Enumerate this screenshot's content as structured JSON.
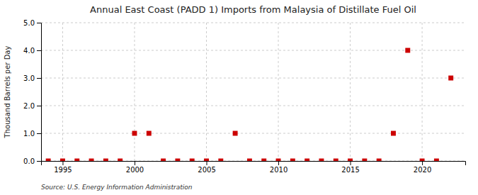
{
  "chart_data": {
    "type": "scatter",
    "title": "Annual East Coast (PADD 1) Imports from Malaysia of Distillate Fuel Oil",
    "ylabel": "Thousand Barrels per Day",
    "source": "Source: U.S. Energy Information Administration",
    "x": [
      1994,
      1995,
      1996,
      1997,
      1998,
      1999,
      2000,
      2001,
      2002,
      2003,
      2004,
      2005,
      2006,
      2007,
      2008,
      2009,
      2010,
      2011,
      2012,
      2013,
      2014,
      2015,
      2016,
      2017,
      2018,
      2019,
      2020,
      2021,
      2022
    ],
    "values": [
      0,
      0,
      0,
      0,
      0,
      0,
      1.0,
      1.0,
      0,
      0,
      0,
      0,
      0,
      1.0,
      0,
      0,
      0,
      0,
      0,
      0,
      0,
      0,
      0,
      0,
      1.0,
      4.0,
      0,
      0,
      3.0
    ],
    "color": "#cc0000",
    "marker": "square",
    "xlim": [
      1993.5,
      2023.0
    ],
    "ylim": [
      0,
      5.0
    ],
    "xticks": [
      1995,
      2000,
      2005,
      2010,
      2015,
      2020
    ],
    "yticks": [
      {
        "value": 0.0,
        "label": "0.0"
      },
      {
        "value": 1.0,
        "label": "1.0"
      },
      {
        "value": 2.0,
        "label": "2.0"
      },
      {
        "value": 3.0,
        "label": "3.0"
      },
      {
        "value": 4.0,
        "label": "4.0"
      },
      {
        "value": 5.0,
        "label": "5.0"
      }
    ],
    "grid": true
  }
}
